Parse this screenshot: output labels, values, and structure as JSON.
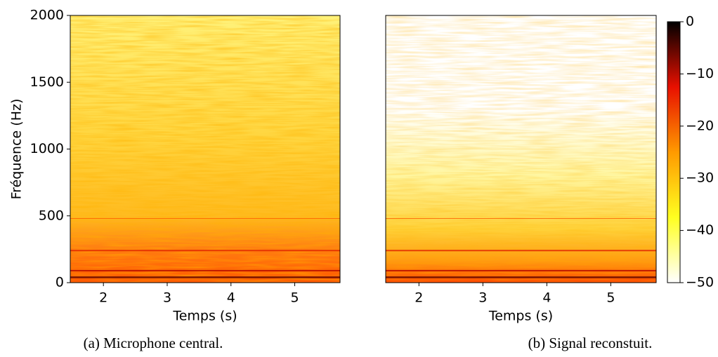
{
  "chart_data": [
    {
      "type": "heatmap",
      "caption": "(a) Microphone central.",
      "xlabel": "Temps (s)",
      "ylabel": "Fréquence (Hz)",
      "xlim": [
        1.48,
        5.71
      ],
      "xticks": [
        2,
        3,
        4,
        5
      ],
      "ylim": [
        0,
        2000
      ],
      "yticks": [
        0,
        500,
        1000,
        1500,
        2000
      ]
    },
    {
      "type": "heatmap",
      "caption": "(b) Signal reconstuit.",
      "xlabel": "Temps (s)",
      "xlim": [
        1.48,
        5.71
      ],
      "xticks": [
        2,
        3,
        4,
        5
      ],
      "ylim": [
        0,
        2000
      ],
      "colorbar": {
        "lim": [
          -50,
          0
        ],
        "ticks": [
          {
            "value": -50,
            "label": "−50"
          },
          {
            "value": -40,
            "label": "−40"
          },
          {
            "value": -30,
            "label": "−30"
          },
          {
            "value": -20,
            "label": "−20"
          },
          {
            "value": -10,
            "label": "−10"
          },
          0
        ],
        "colormap": [
          "#ffffff",
          "#ffff20",
          "#ff9a00",
          "#e81000",
          "#000000"
        ]
      }
    }
  ]
}
